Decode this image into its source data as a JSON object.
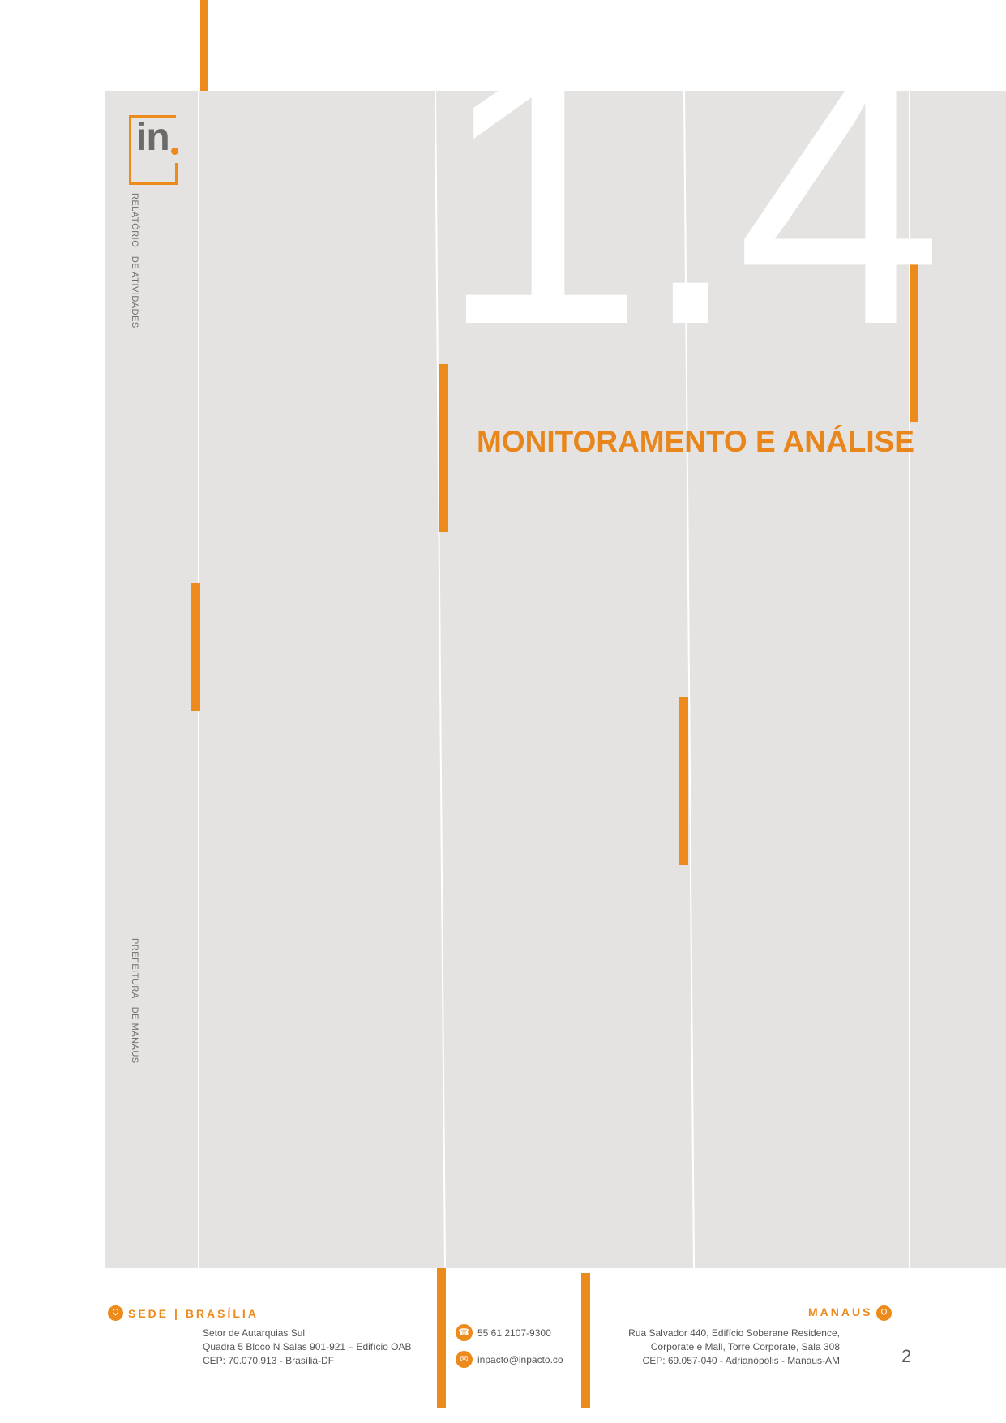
{
  "cover": {
    "logo_text": "in",
    "vertical_title": "RELATÓRIO   DE ATIVIDADES",
    "vertical_client": "PREFEITURA   DE MANAUS",
    "section_number": "1.4",
    "section_title": "MONITORAMENTO E ANÁLISE"
  },
  "footer": {
    "hq": {
      "title": "SEDE | BRASÍLIA",
      "lines": [
        "Setor de Autarquias Sul",
        "Quadra 5 Bloco N Salas 901-921 – Edifício OAB",
        "CEP: 70.070.913 - Brasília-DF"
      ]
    },
    "contact": {
      "phone": "55 61 2107-9300",
      "email": "inpacto@inpacto.co"
    },
    "branch": {
      "title": "MANAUS",
      "lines": [
        "Rua Salvador 440, Edifício Soberane Residence,",
        "Corporate e Mall, Torre Corporate, Sala 308",
        "CEP: 69.057-040 - Adrianópolis - Manaus-AM"
      ]
    },
    "page_number": "2"
  },
  "colors": {
    "accent": "#ec8a1c",
    "panel": "#e4e3e1",
    "text_gray": "#555555"
  },
  "icons": [
    "location-pin-icon",
    "phone-icon",
    "email-icon"
  ]
}
